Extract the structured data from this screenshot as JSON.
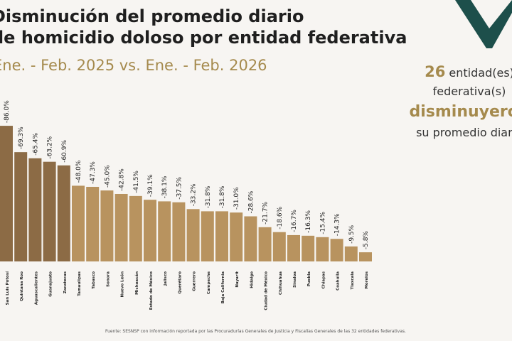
{
  "header": {
    "title_line1": "Disminución del promedio diario",
    "title_line2": "de homicidio doloso por entidad federativa",
    "subtitle": "Ene. - Feb. 2025 vs. Ene. - Feb. 2026"
  },
  "callout": {
    "count": "26",
    "line1": "entidad(es)",
    "line2": "federativa(s)",
    "line3": "disminuyeron",
    "line4": "su promedio diario"
  },
  "footer": {
    "source": "Fuente: SESNSP con información reportada por las Procuradurías Generales de Justicia y Fiscalías Generales de las 32 entidades federativas."
  },
  "colors": {
    "top5": "#8c6b45",
    "rest": "#b8935f",
    "accent": "#a58a4d",
    "deco": "#1d4f4b"
  },
  "chart_data": {
    "type": "bar",
    "title": "",
    "xlabel": "",
    "ylabel": "",
    "unit": "%",
    "grid": false,
    "categories": [
      "San Luis Potosí",
      "Quintana Roo",
      "Aguascalientes",
      "Guanajuato",
      "Zacatecas",
      "Tamaulipas",
      "Tabasco",
      "Sonora",
      "Nuevo León",
      "Michoacán",
      "Estado de México",
      "Jalisco",
      "Querétaro",
      "Guerrero",
      "Campeche",
      "Baja California",
      "Nayarit",
      "Hidalgo",
      "Ciudad de México",
      "Chihuahua",
      "Sinaloa",
      "Puebla",
      "Chiapas",
      "Coahuila",
      "Tlaxcala",
      "Morelos"
    ],
    "values": [
      -86.0,
      -69.3,
      -65.4,
      -63.2,
      -60.9,
      -48.0,
      -47.3,
      -45.0,
      -42.8,
      -41.5,
      -39.1,
      -38.1,
      -37.5,
      -33.2,
      -31.8,
      -31.8,
      -31.0,
      -28.6,
      -21.7,
      -18.6,
      -16.7,
      -16.3,
      -15.4,
      -14.3,
      -9.5,
      -5.8
    ],
    "labels": [
      "-86.0%",
      "-69.3%",
      "-65.4%",
      "-63.2%",
      "-60.9%",
      "-48.0%",
      "-47.3%",
      "-45.0%",
      "-42.8%",
      "-41.5%",
      "-39.1%",
      "-38.1%",
      "-37.5%",
      "-33.2%",
      "-31.8%",
      "-31.8%",
      "-31.0%",
      "-28.6%",
      "-21.7%",
      "-18.6%",
      "-16.7%",
      "-16.3%",
      "-15.4%",
      "-14.3%",
      "-9.5%",
      "-5.8%"
    ]
  }
}
